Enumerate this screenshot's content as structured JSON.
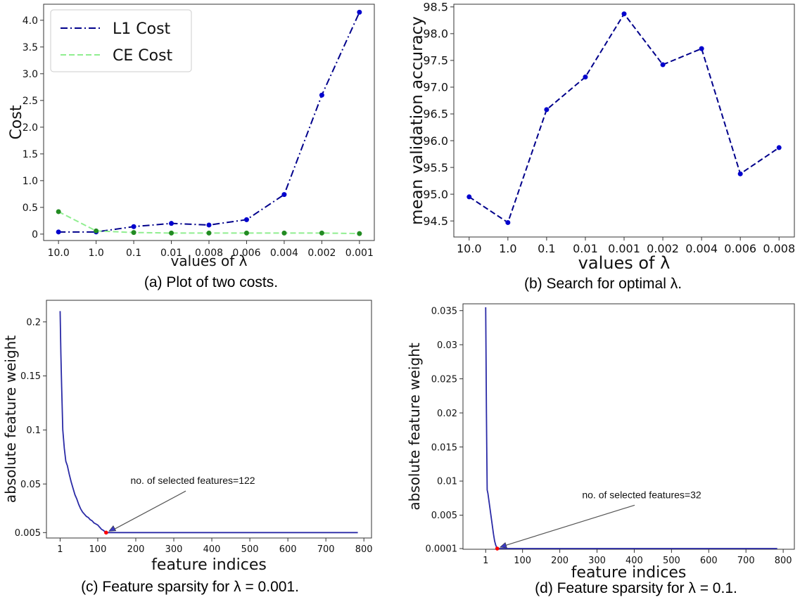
{
  "colors": {
    "navy": "#00008b",
    "marker_blue": "#0000cd",
    "light_green": "#90ee90",
    "green_marker": "#228b22",
    "red_marker": "#ff0000",
    "arrow": "#555555"
  },
  "captions": {
    "a": "(a) Plot of two costs.",
    "b": "(b) Search for optimal λ.",
    "c": "(c) Feature sparsity for λ = 0.001.",
    "d": "(d) Feature sparsity for λ = 0.1."
  },
  "chart_data": [
    {
      "id": "a",
      "type": "line",
      "xlabel": "values of λ",
      "ylabel": "Cost",
      "categories": [
        "10.0",
        "1.0",
        "0.1",
        "0.01",
        "0.008",
        "0.006",
        "0.004",
        "0.002",
        "0.001"
      ],
      "ylim": [
        -0.12,
        4.3
      ],
      "yticks": [
        0,
        0.5,
        1.0,
        1.5,
        2.0,
        2.5,
        3.0,
        3.5,
        4.0
      ],
      "ytick_labels": [
        "0",
        "0.5",
        "1.0",
        "1.5",
        "2.0",
        "2.5",
        "3.0",
        "3.5",
        "4.0"
      ],
      "legend_position": "top-left",
      "series": [
        {
          "name": "L1 Cost",
          "style": "dash-dot",
          "color": "#00008b",
          "values": [
            0.04,
            0.04,
            0.14,
            0.2,
            0.17,
            0.27,
            0.74,
            2.6,
            4.15
          ]
        },
        {
          "name": "CE Cost",
          "style": "dashed",
          "color": "#90ee90",
          "values": [
            0.42,
            0.06,
            0.03,
            0.02,
            0.02,
            0.02,
            0.02,
            0.02,
            0.01
          ]
        }
      ]
    },
    {
      "id": "b",
      "type": "line",
      "xlabel": "values of λ",
      "ylabel": "mean validation accuracy",
      "categories": [
        "10.0",
        "1.0",
        "0.1",
        "0.01",
        "0.001",
        "0.002",
        "0.004",
        "0.006",
        "0.008"
      ],
      "ylim": [
        94.2,
        98.55
      ],
      "yticks": [
        94.5,
        95.0,
        95.5,
        96.0,
        96.5,
        97.0,
        97.5,
        98.0,
        98.5
      ],
      "ytick_labels": [
        "94.5",
        "95.0",
        "95.5",
        "96.0",
        "96.5",
        "97.0",
        "97.5",
        "98.0",
        "98.5"
      ],
      "series": [
        {
          "style": "dashed",
          "color": "#00008b",
          "values": [
            94.95,
            94.47,
            96.58,
            97.19,
            98.37,
            97.42,
            97.72,
            95.38,
            95.87
          ]
        }
      ]
    },
    {
      "id": "c",
      "type": "line",
      "xlabel": "feature indices",
      "ylabel": "absolute feature weight",
      "xlim": [
        -35,
        820
      ],
      "ylim": [
        0,
        0.22
      ],
      "xticks": [
        1,
        100,
        200,
        300,
        400,
        500,
        600,
        700,
        800
      ],
      "xtick_labels": [
        "1",
        "100",
        "200",
        "300",
        "400",
        "500",
        "600",
        "700",
        "800"
      ],
      "yticks": [
        0.005,
        0.05,
        0.1,
        0.15,
        0.2
      ],
      "ytick_labels": [
        "0.005",
        "0.05",
        "0.1",
        "0.15",
        "0.2"
      ],
      "x": [
        1,
        3,
        5,
        8,
        12,
        16,
        20,
        25,
        30,
        35,
        40,
        45,
        50,
        55,
        60,
        65,
        70,
        75,
        80,
        85,
        90,
        95,
        100,
        105,
        110,
        115,
        122,
        200,
        300,
        400,
        500,
        600,
        700,
        784
      ],
      "y": [
        0.21,
        0.17,
        0.14,
        0.1,
        0.083,
        0.071,
        0.067,
        0.059,
        0.052,
        0.046,
        0.04,
        0.036,
        0.031,
        0.027,
        0.024,
        0.022,
        0.02,
        0.019,
        0.017,
        0.016,
        0.014,
        0.013,
        0.012,
        0.01,
        0.008,
        0.007,
        0.005,
        0.005,
        0.005,
        0.005,
        0.005,
        0.005,
        0.005,
        0.005
      ],
      "marker": {
        "x": 122,
        "y": 0.005
      },
      "annotation": {
        "text": "no. of selected features=122",
        "text_x": 350,
        "text_y": 0.05,
        "target_x": 122,
        "target_y": 0.005
      }
    },
    {
      "id": "d",
      "type": "line",
      "xlabel": "feature indices",
      "ylabel": "absolute feature weight",
      "xlim": [
        -60,
        830
      ],
      "ylim": [
        0,
        0.036
      ],
      "xticks": [
        1,
        100,
        200,
        300,
        400,
        500,
        600,
        700,
        800
      ],
      "xtick_labels": [
        "1",
        "100",
        "200",
        "300",
        "400",
        "500",
        "600",
        "700",
        "800"
      ],
      "yticks": [
        0.0001,
        0.005,
        0.01,
        0.015,
        0.02,
        0.025,
        0.03,
        0.035
      ],
      "ytick_labels": [
        "0.0001",
        "0.005",
        "0.01",
        "0.015",
        "0.02",
        "0.025",
        "0.03",
        "0.035"
      ],
      "x": [
        1,
        2,
        3,
        4,
        5,
        7,
        10,
        13,
        16,
        19,
        22,
        25,
        28,
        32,
        100,
        200,
        300,
        400,
        500,
        600,
        700,
        784
      ],
      "y": [
        0.0355,
        0.028,
        0.02,
        0.014,
        0.0087,
        0.0082,
        0.007,
        0.0058,
        0.0046,
        0.0034,
        0.0022,
        0.0012,
        0.0006,
        0.0001,
        0.0001,
        0.0001,
        0.0001,
        0.0001,
        0.0001,
        0.0001,
        0.0001,
        0.0001
      ],
      "marker": {
        "x": 32,
        "y": 0.0001
      },
      "annotation": {
        "text": "no. of selected features=32",
        "text_x": 420,
        "text_y": 0.0075,
        "target_x": 32,
        "target_y": 0.0001
      }
    }
  ]
}
